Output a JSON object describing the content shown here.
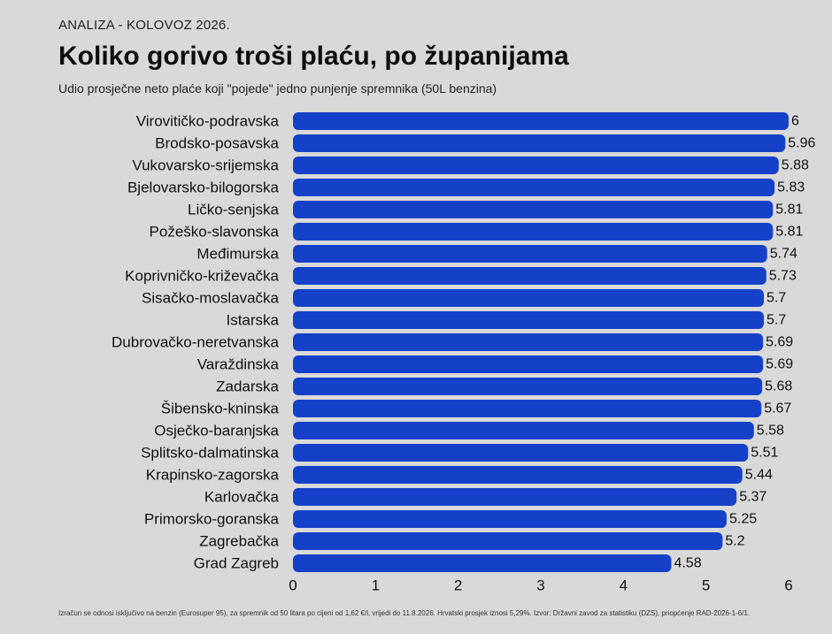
{
  "header": {
    "kicker": "ANALIZA - KOLOVOZ 2026.",
    "title": "Koliko gorivo troši plaću, po županijama",
    "subtitle": "Udio prosječne neto plaće koji \"pojede\" jedno punjenje spremnika (50L benzina)"
  },
  "footnote": "Izračun se odnosi isključivo na benzin (Eurosuper 95), za spremnik od 50 litara po cijeni od 1,62 €/l, vrijedi do 11.8.2026. Hrvatski prosjek iznosi 5,29%. Izvor: Državni zavod za statistiku (DZS), priopćenje RAD-2026-1-6/1.",
  "colors": {
    "bar": "#1541c9",
    "background": "#d9d9d9",
    "text": "#111111"
  },
  "chart_data": {
    "type": "bar",
    "orientation": "horizontal",
    "categories": [
      "Virovitičko-podravska",
      "Brodsko-posavska",
      "Vukovarsko-srijemska",
      "Bjelovarsko-bilogorska",
      "Ličko-senjska",
      "Požeško-slavonska",
      "Međimurska",
      "Koprivničko-križevačka",
      "Sisačko-moslavačka",
      "Istarska",
      "Dubrovačko-neretvanska",
      "Varaždinska",
      "Zadarska",
      "Šibensko-kninska",
      "Osječko-baranjska",
      "Splitsko-dalmatinska",
      "Krapinsko-zagorska",
      "Karlovačka",
      "Primorsko-goranska",
      "Zagrebačka",
      "Grad Zagreb"
    ],
    "values": [
      6,
      5.96,
      5.88,
      5.83,
      5.81,
      5.81,
      5.74,
      5.73,
      5.7,
      5.7,
      5.69,
      5.69,
      5.68,
      5.67,
      5.58,
      5.51,
      5.44,
      5.37,
      5.25,
      5.2,
      4.58
    ],
    "value_labels": [
      "6",
      "5.96",
      "5.88",
      "5.83",
      "5.81",
      "5.81",
      "5.74",
      "5.73",
      "5.7",
      "5.7",
      "5.69",
      "5.69",
      "5.68",
      "5.67",
      "5.58",
      "5.51",
      "5.44",
      "5.37",
      "5.25",
      "5.2",
      "4.58"
    ],
    "xlim": [
      0,
      6
    ],
    "xticks": [
      "0",
      "1",
      "2",
      "3",
      "4",
      "5",
      "6"
    ],
    "grid": false
  }
}
